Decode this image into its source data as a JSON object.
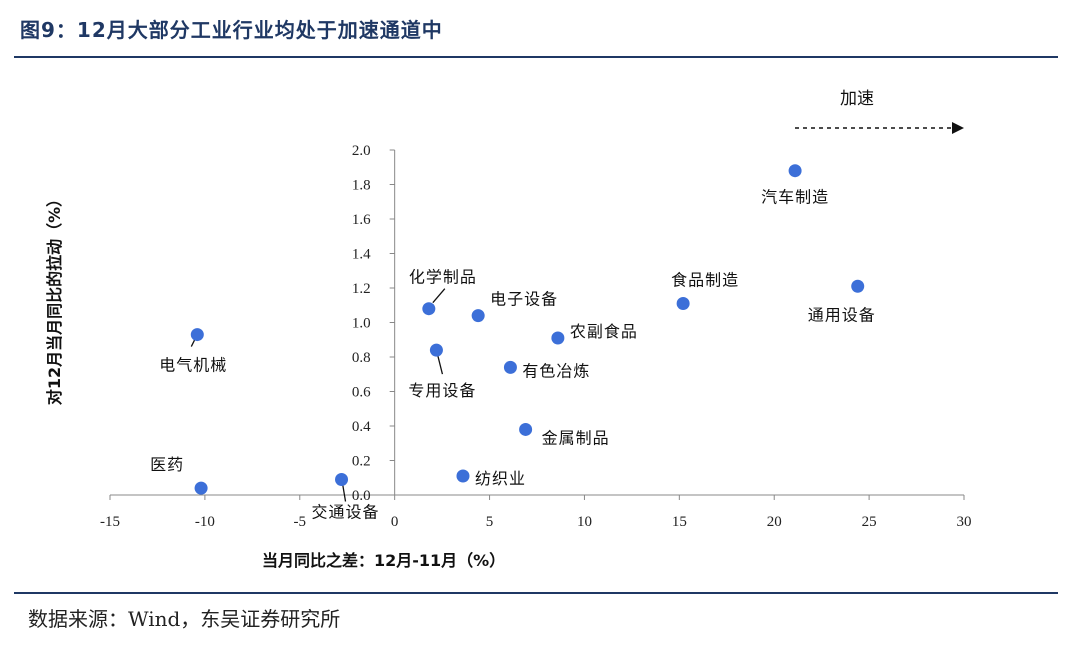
{
  "header": {
    "title": "图9：12月大部分工业行业均处于加速通道中"
  },
  "footer": {
    "source": "数据来源：Wind，东吴证券研究所"
  },
  "chart_data": {
    "type": "scatter",
    "title": "",
    "xlabel": "当月同比之差：12月-11月（%）",
    "ylabel": "对12月当月同比的拉动（%）",
    "xlim": [
      -15,
      30
    ],
    "ylim": [
      0,
      2.0
    ],
    "x_ticks": [
      "-15",
      "-10",
      "-5",
      "0",
      "5",
      "10",
      "15",
      "20",
      "25",
      "30"
    ],
    "y_ticks": [
      "0.0",
      "0.2",
      "0.4",
      "0.6",
      "0.8",
      "1.0",
      "1.2",
      "1.4",
      "1.6",
      "1.8",
      "2.0"
    ],
    "annotation": "加速",
    "series": [
      {
        "color": "#3c6fd8",
        "points": [
          {
            "label": "汽车制造",
            "x": 21.1,
            "y": 1.88
          },
          {
            "label": "通用设备",
            "x": 24.4,
            "y": 1.21
          },
          {
            "label": "食品制造",
            "x": 15.2,
            "y": 1.11
          },
          {
            "label": "化学制品",
            "x": 1.8,
            "y": 1.08
          },
          {
            "label": "电子设备",
            "x": 4.4,
            "y": 1.04
          },
          {
            "label": "农副食品",
            "x": 8.6,
            "y": 0.91
          },
          {
            "label": "电气机械",
            "x": -10.4,
            "y": 0.93
          },
          {
            "label": "专用设备",
            "x": 2.2,
            "y": 0.84
          },
          {
            "label": "有色冶炼",
            "x": 6.1,
            "y": 0.74
          },
          {
            "label": "金属制品",
            "x": 6.9,
            "y": 0.38
          },
          {
            "label": "纺织业",
            "x": 3.6,
            "y": 0.11
          },
          {
            "label": "交通设备",
            "x": -2.8,
            "y": 0.09
          },
          {
            "label": "医药",
            "x": -10.2,
            "y": 0.04
          }
        ]
      }
    ],
    "grid": false
  }
}
